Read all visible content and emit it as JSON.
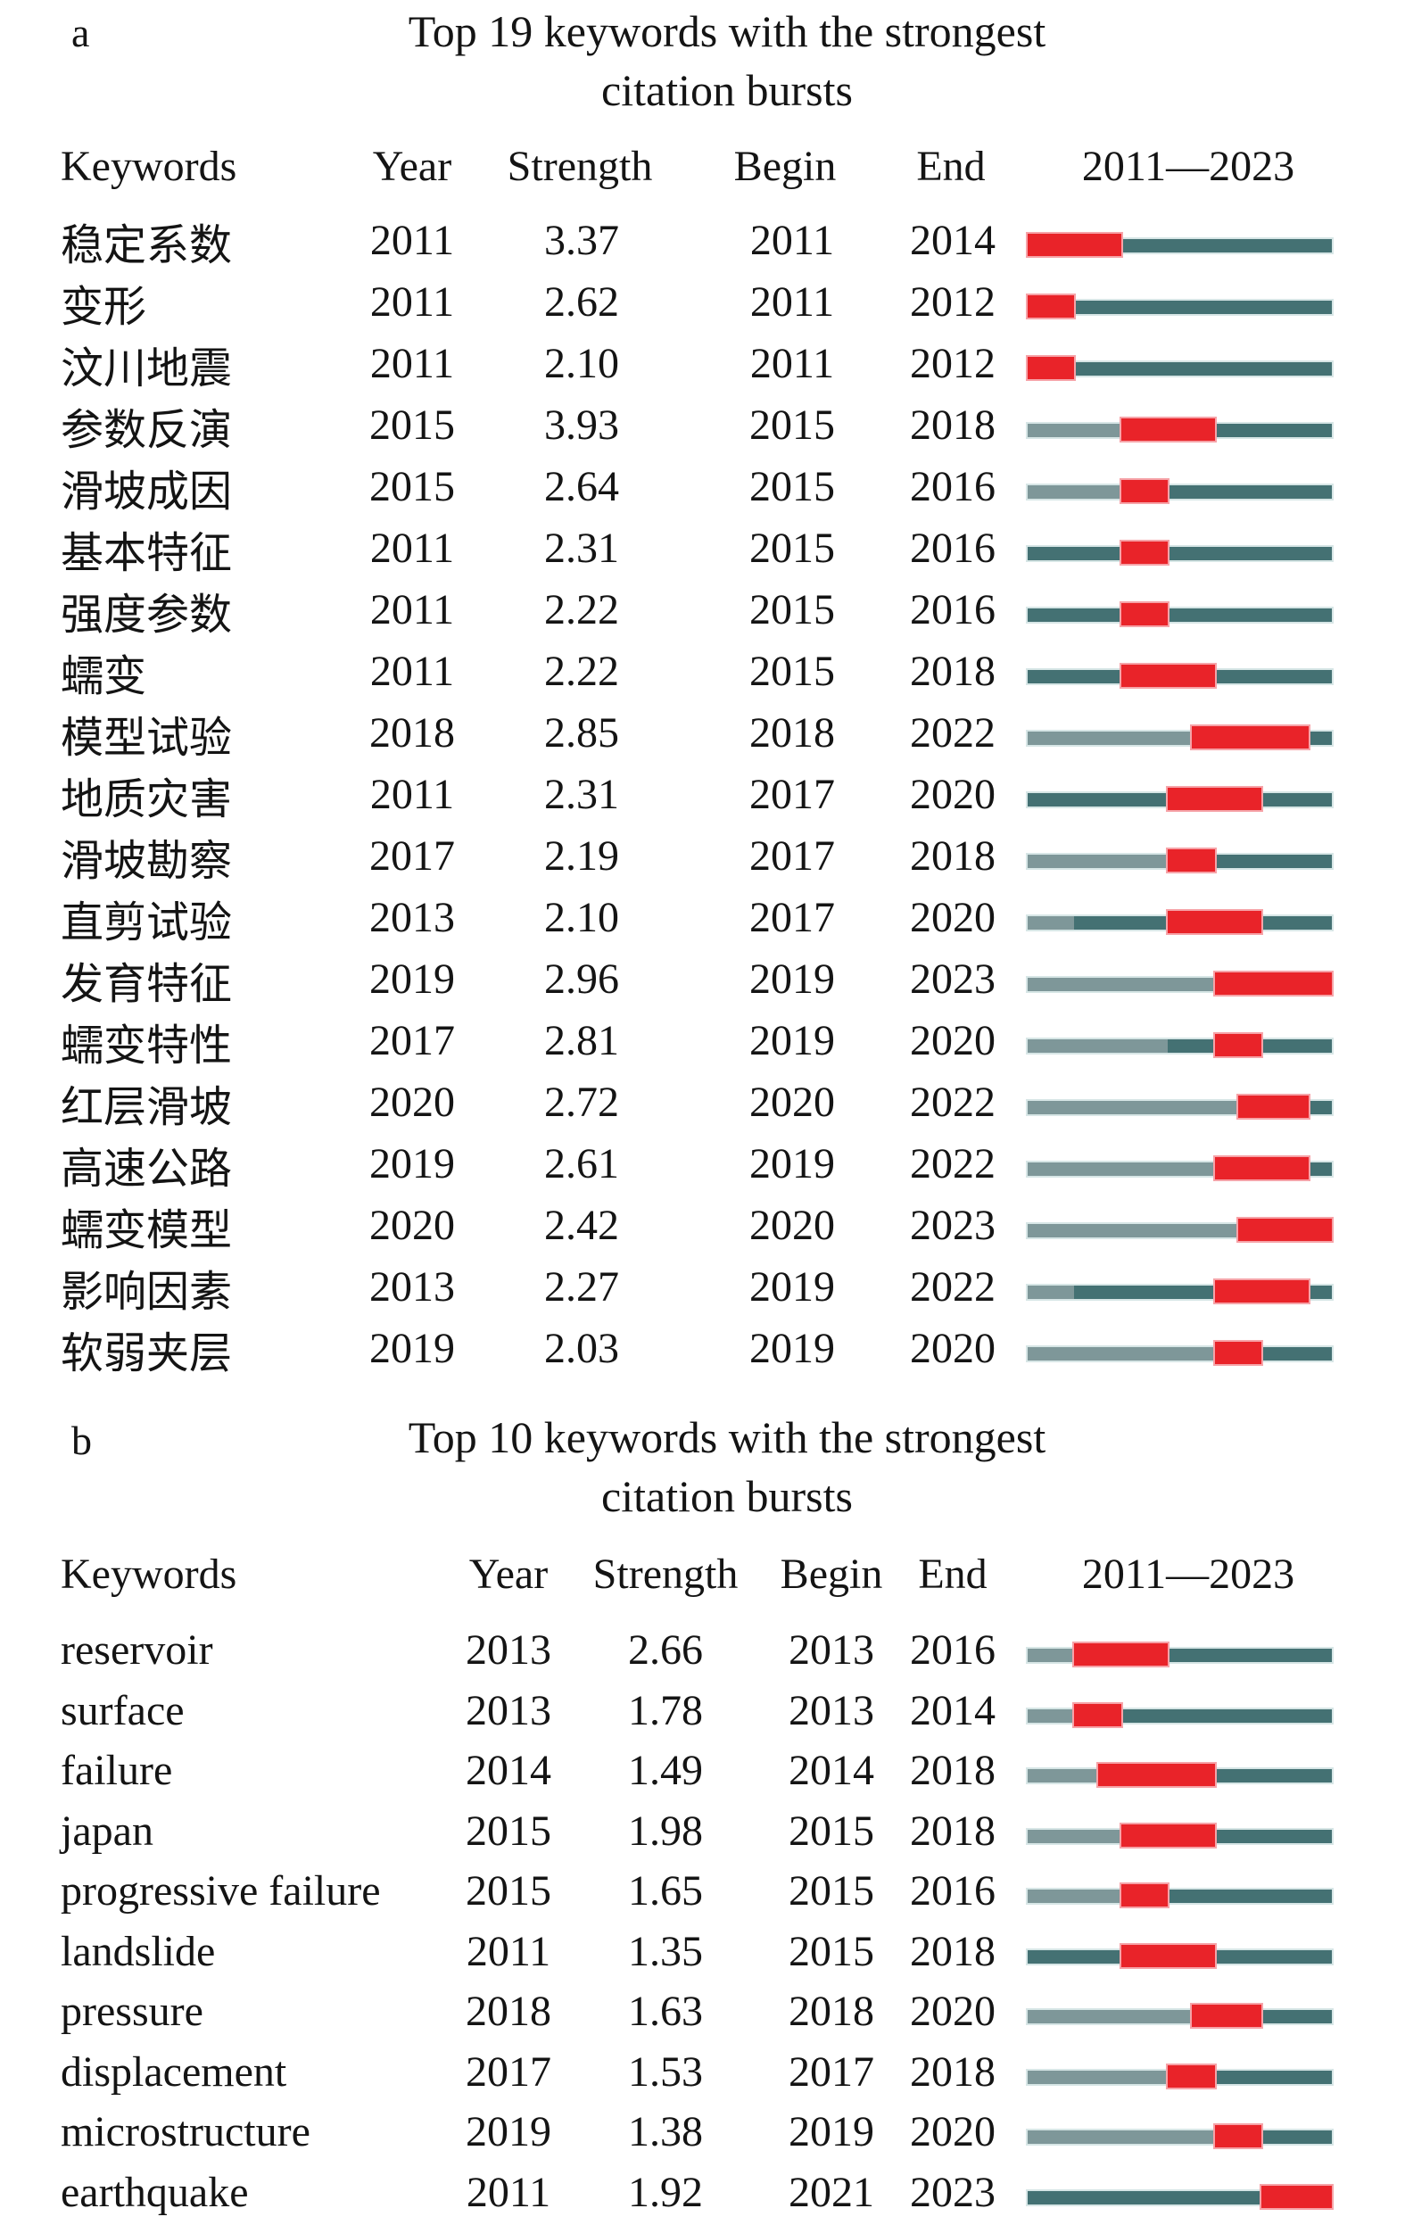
{
  "colors": {
    "burst_red": "#e92329",
    "active_teal": "#447173",
    "pre_appearance_gray": "#7e9799",
    "track_edge_light": "#d7e6e6",
    "burst_edge_pink": "#f6a3a8",
    "text": "#141414",
    "background": "#ffffff"
  },
  "bar_legend": {
    "red_segment": "burst period (Begin to End)",
    "teal_segment": "active years within 2011—2023",
    "gray_segment": "years before keyword first appeared"
  },
  "panels": [
    {
      "id": "a",
      "label": "a",
      "title_line1": "Top 19 keywords with the strongest",
      "title_line2": "citation bursts",
      "headers": {
        "keywords": "Keywords",
        "year": "Year",
        "strength": "Strength",
        "begin": "Begin",
        "end": "End",
        "range": "2011—2023"
      },
      "rows": [
        {
          "keyword": "稳定系数",
          "year": "2011",
          "strength": "3.37",
          "begin": "2011",
          "end": "2014",
          "segments": [
            [
              "red",
              4
            ],
            [
              "teal",
              9
            ]
          ]
        },
        {
          "keyword": "变形",
          "year": "2011",
          "strength": "2.62",
          "begin": "2011",
          "end": "2012",
          "segments": [
            [
              "red",
              2
            ],
            [
              "teal",
              11
            ]
          ]
        },
        {
          "keyword": "汶川地震",
          "year": "2011",
          "strength": "2.10",
          "begin": "2011",
          "end": "2012",
          "segments": [
            [
              "red",
              2
            ],
            [
              "teal",
              11
            ]
          ]
        },
        {
          "keyword": "参数反演",
          "year": "2015",
          "strength": "3.93",
          "begin": "2015",
          "end": "2018",
          "segments": [
            [
              "gray",
              4
            ],
            [
              "red",
              4
            ],
            [
              "teal",
              5
            ]
          ]
        },
        {
          "keyword": "滑坡成因",
          "year": "2015",
          "strength": "2.64",
          "begin": "2015",
          "end": "2016",
          "segments": [
            [
              "gray",
              4
            ],
            [
              "red",
              2
            ],
            [
              "teal",
              7
            ]
          ]
        },
        {
          "keyword": "基本特征",
          "year": "2011",
          "strength": "2.31",
          "begin": "2015",
          "end": "2016",
          "segments": [
            [
              "teal",
              4
            ],
            [
              "red",
              2
            ],
            [
              "teal",
              7
            ]
          ]
        },
        {
          "keyword": "强度参数",
          "year": "2011",
          "strength": "2.22",
          "begin": "2015",
          "end": "2016",
          "segments": [
            [
              "teal",
              4
            ],
            [
              "red",
              2
            ],
            [
              "teal",
              7
            ]
          ]
        },
        {
          "keyword": "蠕变",
          "year": "2011",
          "strength": "2.22",
          "begin": "2015",
          "end": "2018",
          "segments": [
            [
              "teal",
              4
            ],
            [
              "red",
              4
            ],
            [
              "teal",
              5
            ]
          ]
        },
        {
          "keyword": "模型试验",
          "year": "2018",
          "strength": "2.85",
          "begin": "2018",
          "end": "2022",
          "segments": [
            [
              "gray",
              7
            ],
            [
              "red",
              5
            ],
            [
              "teal",
              1
            ]
          ]
        },
        {
          "keyword": "地质灾害",
          "year": "2011",
          "strength": "2.31",
          "begin": "2017",
          "end": "2020",
          "segments": [
            [
              "teal",
              6
            ],
            [
              "red",
              4
            ],
            [
              "teal",
              3
            ]
          ]
        },
        {
          "keyword": "滑坡勘察",
          "year": "2017",
          "strength": "2.19",
          "begin": "2017",
          "end": "2018",
          "segments": [
            [
              "gray",
              6
            ],
            [
              "red",
              2
            ],
            [
              "teal",
              5
            ]
          ]
        },
        {
          "keyword": "直剪试验",
          "year": "2013",
          "strength": "2.10",
          "begin": "2017",
          "end": "2020",
          "segments": [
            [
              "gray",
              2
            ],
            [
              "teal",
              4
            ],
            [
              "red",
              4
            ],
            [
              "teal",
              3
            ]
          ]
        },
        {
          "keyword": "发育特征",
          "year": "2019",
          "strength": "2.96",
          "begin": "2019",
          "end": "2023",
          "segments": [
            [
              "gray",
              8
            ],
            [
              "red",
              5
            ]
          ]
        },
        {
          "keyword": "蠕变特性",
          "year": "2017",
          "strength": "2.81",
          "begin": "2019",
          "end": "2020",
          "segments": [
            [
              "gray",
              6
            ],
            [
              "teal",
              2
            ],
            [
              "red",
              2
            ],
            [
              "teal",
              3
            ]
          ]
        },
        {
          "keyword": "红层滑坡",
          "year": "2020",
          "strength": "2.72",
          "begin": "2020",
          "end": "2022",
          "segments": [
            [
              "gray",
              9
            ],
            [
              "red",
              3
            ],
            [
              "teal",
              1
            ]
          ]
        },
        {
          "keyword": "高速公路",
          "year": "2019",
          "strength": "2.61",
          "begin": "2019",
          "end": "2022",
          "segments": [
            [
              "gray",
              8
            ],
            [
              "red",
              4
            ],
            [
              "teal",
              1
            ]
          ]
        },
        {
          "keyword": "蠕变模型",
          "year": "2020",
          "strength": "2.42",
          "begin": "2020",
          "end": "2023",
          "segments": [
            [
              "gray",
              9
            ],
            [
              "red",
              4
            ]
          ]
        },
        {
          "keyword": "影响因素",
          "year": "2013",
          "strength": "2.27",
          "begin": "2019",
          "end": "2022",
          "segments": [
            [
              "gray",
              2
            ],
            [
              "teal",
              6
            ],
            [
              "red",
              4
            ],
            [
              "teal",
              1
            ]
          ]
        },
        {
          "keyword": "软弱夹层",
          "year": "2019",
          "strength": "2.03",
          "begin": "2019",
          "end": "2020",
          "segments": [
            [
              "gray",
              8
            ],
            [
              "red",
              2
            ],
            [
              "teal",
              3
            ]
          ]
        }
      ]
    },
    {
      "id": "b",
      "label": "b",
      "title_line1": "Top 10 keywords with the strongest",
      "title_line2": "citation bursts",
      "headers": {
        "keywords": "Keywords",
        "year": "Year",
        "strength": "Strength",
        "begin": "Begin",
        "end": "End",
        "range": "2011—2023"
      },
      "rows": [
        {
          "keyword": "reservoir",
          "year": "2013",
          "strength": "2.66",
          "begin": "2013",
          "end": "2016",
          "segments": [
            [
              "gray",
              2
            ],
            [
              "red",
              4
            ],
            [
              "teal",
              7
            ]
          ]
        },
        {
          "keyword": "surface",
          "year": "2013",
          "strength": "1.78",
          "begin": "2013",
          "end": "2014",
          "segments": [
            [
              "gray",
              2
            ],
            [
              "red",
              2
            ],
            [
              "teal",
              9
            ]
          ]
        },
        {
          "keyword": "failure",
          "year": "2014",
          "strength": "1.49",
          "begin": "2014",
          "end": "2018",
          "segments": [
            [
              "gray",
              3
            ],
            [
              "red",
              5
            ],
            [
              "teal",
              5
            ]
          ]
        },
        {
          "keyword": "japan",
          "year": "2015",
          "strength": "1.98",
          "begin": "2015",
          "end": "2018",
          "segments": [
            [
              "gray",
              4
            ],
            [
              "red",
              4
            ],
            [
              "teal",
              5
            ]
          ]
        },
        {
          "keyword": "progressive failure",
          "year": "2015",
          "strength": "1.65",
          "begin": "2015",
          "end": "2016",
          "segments": [
            [
              "gray",
              4
            ],
            [
              "red",
              2
            ],
            [
              "teal",
              7
            ]
          ]
        },
        {
          "keyword": "landslide",
          "year": "2011",
          "strength": "1.35",
          "begin": "2015",
          "end": "2018",
          "segments": [
            [
              "teal",
              4
            ],
            [
              "red",
              4
            ],
            [
              "teal",
              5
            ]
          ]
        },
        {
          "keyword": "pressure",
          "year": "2018",
          "strength": "1.63",
          "begin": "2018",
          "end": "2020",
          "segments": [
            [
              "gray",
              7
            ],
            [
              "red",
              3
            ],
            [
              "teal",
              3
            ]
          ]
        },
        {
          "keyword": "displacement",
          "year": "2017",
          "strength": "1.53",
          "begin": "2017",
          "end": "2018",
          "segments": [
            [
              "gray",
              6
            ],
            [
              "red",
              2
            ],
            [
              "teal",
              5
            ]
          ]
        },
        {
          "keyword": "microstructure",
          "year": "2019",
          "strength": "1.38",
          "begin": "2019",
          "end": "2020",
          "segments": [
            [
              "gray",
              8
            ],
            [
              "red",
              2
            ],
            [
              "teal",
              3
            ]
          ]
        },
        {
          "keyword": "earthquake",
          "year": "2011",
          "strength": "1.92",
          "begin": "2021",
          "end": "2023",
          "segments": [
            [
              "teal",
              10
            ],
            [
              "red",
              3
            ]
          ]
        }
      ]
    }
  ],
  "chart_data": [
    {
      "type": "table",
      "panel": "a",
      "title": "Top 19 keywords with the strongest citation bursts",
      "columns": [
        "Keywords",
        "Year",
        "Strength",
        "Begin",
        "End",
        "2011—2023"
      ],
      "x_range": [
        2011,
        2023
      ],
      "rows": [
        [
          "稳定系数",
          2011,
          3.37,
          2011,
          2014
        ],
        [
          "变形",
          2011,
          2.62,
          2011,
          2012
        ],
        [
          "汶川地震",
          2011,
          2.1,
          2011,
          2012
        ],
        [
          "参数反演",
          2015,
          3.93,
          2015,
          2018
        ],
        [
          "滑坡成因",
          2015,
          2.64,
          2015,
          2016
        ],
        [
          "基本特征",
          2011,
          2.31,
          2015,
          2016
        ],
        [
          "强度参数",
          2011,
          2.22,
          2015,
          2016
        ],
        [
          "蠕变",
          2011,
          2.22,
          2015,
          2018
        ],
        [
          "模型试验",
          2018,
          2.85,
          2018,
          2022
        ],
        [
          "地质灾害",
          2011,
          2.31,
          2017,
          2020
        ],
        [
          "滑坡勘察",
          2017,
          2.19,
          2017,
          2018
        ],
        [
          "直剪试验",
          2013,
          2.1,
          2017,
          2020
        ],
        [
          "发育特征",
          2019,
          2.96,
          2019,
          2023
        ],
        [
          "蠕变特性",
          2017,
          2.81,
          2019,
          2020
        ],
        [
          "红层滑坡",
          2020,
          2.72,
          2020,
          2022
        ],
        [
          "高速公路",
          2019,
          2.61,
          2019,
          2022
        ],
        [
          "蠕变模型",
          2020,
          2.42,
          2020,
          2023
        ],
        [
          "影响因素",
          2013,
          2.27,
          2019,
          2022
        ],
        [
          "软弱夹层",
          2019,
          2.03,
          2019,
          2020
        ]
      ]
    },
    {
      "type": "table",
      "panel": "b",
      "title": "Top 10 keywords with the strongest citation bursts",
      "columns": [
        "Keywords",
        "Year",
        "Strength",
        "Begin",
        "End",
        "2011—2023"
      ],
      "x_range": [
        2011,
        2023
      ],
      "rows": [
        [
          "reservoir",
          2013,
          2.66,
          2013,
          2016
        ],
        [
          "surface",
          2013,
          1.78,
          2013,
          2014
        ],
        [
          "failure",
          2014,
          1.49,
          2014,
          2018
        ],
        [
          "japan",
          2015,
          1.98,
          2015,
          2018
        ],
        [
          "progressive failure",
          2015,
          1.65,
          2015,
          2016
        ],
        [
          "landslide",
          2011,
          1.35,
          2015,
          2018
        ],
        [
          "pressure",
          2018,
          1.63,
          2018,
          2020
        ],
        [
          "displacement",
          2017,
          1.53,
          2017,
          2018
        ],
        [
          "microstructure",
          2019,
          1.38,
          2019,
          2020
        ],
        [
          "earthquake",
          2011,
          1.92,
          2021,
          2023
        ]
      ]
    }
  ]
}
